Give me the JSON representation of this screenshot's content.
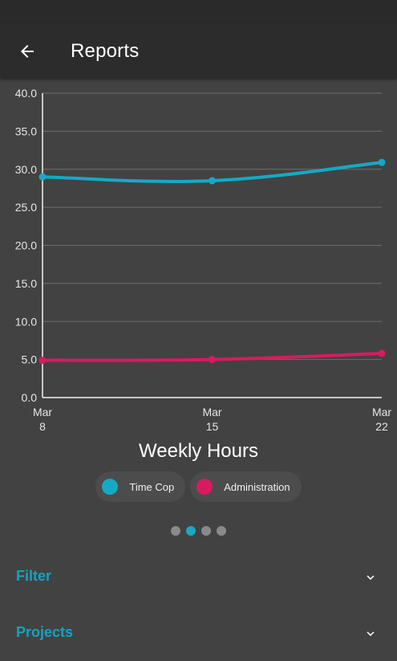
{
  "appbar": {
    "title": "Reports",
    "back_icon": "arrow-left-icon"
  },
  "chart_data": {
    "type": "line",
    "title": "Weekly Hours",
    "categories": [
      "Mar 8",
      "Mar 15",
      "Mar 22"
    ],
    "ylim": [
      0,
      40
    ],
    "yticks": [
      "0.0",
      "5.0",
      "10.0",
      "15.0",
      "20.0",
      "25.0",
      "30.0",
      "35.0",
      "40.0"
    ],
    "grid": true,
    "legend_placement": "bottom-center",
    "series": [
      {
        "name": "Time Cop",
        "color": "#15a9c5",
        "values": [
          29.0,
          28.5,
          30.9
        ]
      },
      {
        "name": "Administration",
        "color": "#d81b60",
        "values": [
          4.9,
          5.0,
          5.8
        ]
      }
    ]
  },
  "legend": [
    {
      "label": "Time Cop",
      "color": "#15a9c5"
    },
    {
      "label": "Administration",
      "color": "#d81b60"
    }
  ],
  "pager": {
    "count": 4,
    "active": 1
  },
  "sections": {
    "filter": {
      "title": "Filter",
      "icon": "chevron-down-icon"
    },
    "projects": {
      "title": "Projects",
      "icon": "chevron-down-icon"
    }
  },
  "colors": {
    "background": "#424242",
    "appbar": "#2c2c2c",
    "accent": "#17a2bd"
  }
}
